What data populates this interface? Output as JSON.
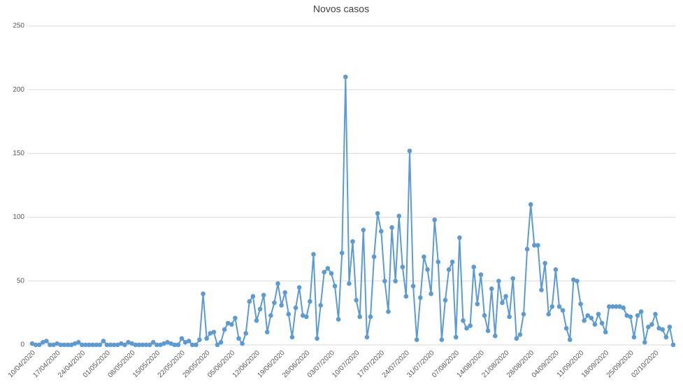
{
  "chart_data": {
    "type": "line",
    "title": "Novos casos",
    "categories": [
      "10/04/2020",
      null,
      null,
      null,
      null,
      null,
      null,
      "17/04/2020",
      null,
      null,
      null,
      null,
      null,
      null,
      "24/04/2020",
      null,
      null,
      null,
      null,
      null,
      null,
      "01/05/2020",
      null,
      null,
      null,
      null,
      null,
      null,
      "08/05/2020",
      null,
      null,
      null,
      null,
      null,
      null,
      "15/05/2020",
      null,
      null,
      null,
      null,
      null,
      null,
      "22/05/2020",
      null,
      null,
      null,
      null,
      null,
      null,
      "29/05/2020",
      null,
      null,
      null,
      null,
      null,
      null,
      "05/06/2020",
      null,
      null,
      null,
      null,
      null,
      null,
      "12/06/2020",
      null,
      null,
      null,
      null,
      null,
      null,
      "19/06/2020",
      null,
      null,
      null,
      null,
      null,
      null,
      "26/06/2020",
      null,
      null,
      null,
      null,
      null,
      null,
      "03/07/2020",
      null,
      null,
      null,
      null,
      null,
      null,
      "10/07/2020",
      null,
      null,
      null,
      null,
      null,
      null,
      "17/07/2020",
      null,
      null,
      null,
      null,
      null,
      null,
      "24/07/2020",
      null,
      null,
      null,
      null,
      null,
      null,
      "31/07/2020",
      null,
      null,
      null,
      null,
      null,
      null,
      "07/08/2020",
      null,
      null,
      null,
      null,
      null,
      null,
      "14/08/2020",
      null,
      null,
      null,
      null,
      null,
      null,
      "21/08/2020",
      null,
      null,
      null,
      null,
      null,
      null,
      "28/08/2020",
      null,
      null,
      null,
      null,
      null,
      null,
      "04/09/2020",
      null,
      null,
      null,
      null,
      null,
      null,
      "11/09/2020",
      null,
      null,
      null,
      null,
      null,
      null,
      "18/09/2020",
      null,
      null,
      null,
      null,
      null,
      null,
      "25/09/2020",
      null,
      null,
      null,
      null,
      null,
      null,
      "02/10/2020",
      null,
      null,
      null,
      null,
      null
    ],
    "series": [
      {
        "name": "Novos casos",
        "color": "#5b9bd5",
        "values": [
          1,
          0,
          0,
          2,
          3,
          0,
          0,
          1,
          0,
          0,
          0,
          0,
          1,
          2,
          0,
          0,
          0,
          0,
          0,
          0,
          3,
          0,
          0,
          0,
          0,
          1,
          0,
          2,
          1,
          0,
          0,
          0,
          0,
          0,
          2,
          0,
          0,
          1,
          2,
          1,
          0,
          0,
          5,
          2,
          3,
          0,
          0,
          4,
          40,
          5,
          9,
          10,
          0,
          2,
          12,
          17,
          16,
          21,
          5,
          1,
          9,
          34,
          38,
          19,
          28,
          39,
          10,
          23,
          33,
          48,
          31,
          41,
          24,
          6,
          29,
          45,
          23,
          22,
          34,
          71,
          5,
          31,
          57,
          60,
          56,
          46,
          20,
          72,
          210,
          48,
          81,
          35,
          22,
          90,
          6,
          22,
          69,
          103,
          89,
          50,
          26,
          92,
          50,
          101,
          61,
          38,
          152,
          46,
          4,
          37,
          69,
          59,
          40,
          98,
          65,
          4,
          35,
          59,
          65,
          6,
          84,
          19,
          13,
          15,
          61,
          32,
          55,
          23,
          11,
          44,
          7,
          50,
          33,
          38,
          22,
          52,
          5,
          8,
          24,
          75,
          110,
          78,
          78,
          43,
          64,
          24,
          30,
          59,
          30,
          27,
          13,
          4,
          51,
          50,
          32,
          19,
          23,
          21,
          16,
          24,
          17,
          10,
          30,
          30,
          30,
          30,
          29,
          23,
          22,
          6,
          23,
          26,
          2,
          14,
          16,
          24,
          13,
          12,
          6,
          14,
          0
        ]
      }
    ],
    "ylim": [
      0,
      250
    ],
    "yticks": [
      0,
      50,
      100,
      150,
      200,
      250
    ],
    "grid": true
  }
}
